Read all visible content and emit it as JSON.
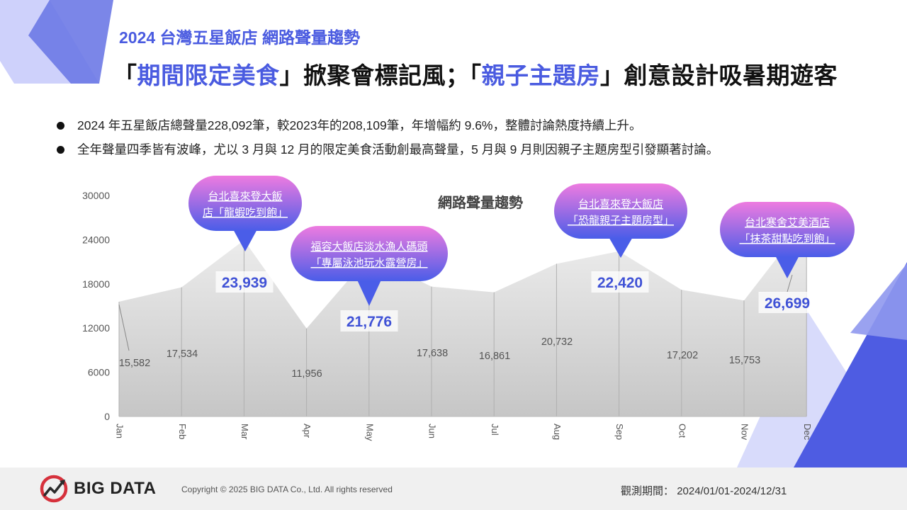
{
  "header": {
    "subtitle": "2024 台灣五星飯店 網路聲量趨勢",
    "headline": {
      "p1": "「",
      "h1": "期間限定美食",
      "p2": "」掀聚會標記風；「",
      "h2": "親子主題房",
      "p3": "」創意設計吸暑期遊客"
    }
  },
  "bullets": [
    "2024 年五星飯店總聲量228,092筆，較2023年的208,109筆，年增幅約 9.6%，整體討論熱度持續上升。",
    "全年聲量四季皆有波峰，尤以 3 月與 12 月的限定美食活動創最高聲量，5 月與 9 月則因親子主題房型引發顯著討論。"
  ],
  "chart_data": {
    "type": "area",
    "title": "網路聲量趨勢",
    "categories": [
      "Jan",
      "Feb",
      "Mar",
      "Apr",
      "May",
      "Jun",
      "Jul",
      "Aug",
      "Sep",
      "Oct",
      "Nov",
      "Dec"
    ],
    "values": [
      15582,
      17534,
      23939,
      11956,
      21776,
      17638,
      16861,
      20732,
      22420,
      17202,
      15753,
      26699
    ],
    "value_labels": [
      "15,582",
      "17,534",
      "23,939",
      "11,956",
      "21,776",
      "17,638",
      "16,861",
      "20,732",
      "22,420",
      "17,202",
      "15,753",
      "26,699"
    ],
    "highlight_months": [
      2,
      4,
      8,
      11
    ],
    "ylim": [
      0,
      30000
    ],
    "yticks": [
      0,
      6000,
      12000,
      18000,
      24000,
      30000
    ],
    "ytick_labels": [
      "0",
      "6000",
      "12000",
      "18000",
      "24000",
      "30000"
    ],
    "grid": false,
    "callouts": [
      {
        "month": 2,
        "line1": "台北喜來登大飯",
        "line2": "店「龍蝦吃到飽」"
      },
      {
        "month": 4,
        "line1": "福容大飯店淡水漁人碼頭",
        "line2": "「專屬泳池玩水露營房」"
      },
      {
        "month": 8,
        "line1": "台北喜來登大飯店",
        "line2": "「恐龍親子主題房型」"
      },
      {
        "month": 11,
        "line1": "台北寒舍艾美酒店",
        "line2": "「抹茶甜點吃到飽」"
      }
    ],
    "colors": {
      "area_top": "#f0f0f0",
      "area_bottom": "#c6c6c6",
      "highlight_text": "#4052d6",
      "callout_top": "#ee7be0",
      "callout_bottom": "#4a5de8",
      "axis_text": "#555555"
    }
  },
  "footer": {
    "logo_text": "BIG DATA",
    "copyright": "Copyright © 2025 BIG DATA Co., Ltd. All rights reserved",
    "period_label": "觀測期間：",
    "period_value": "2024/01/01-2024/12/31"
  }
}
